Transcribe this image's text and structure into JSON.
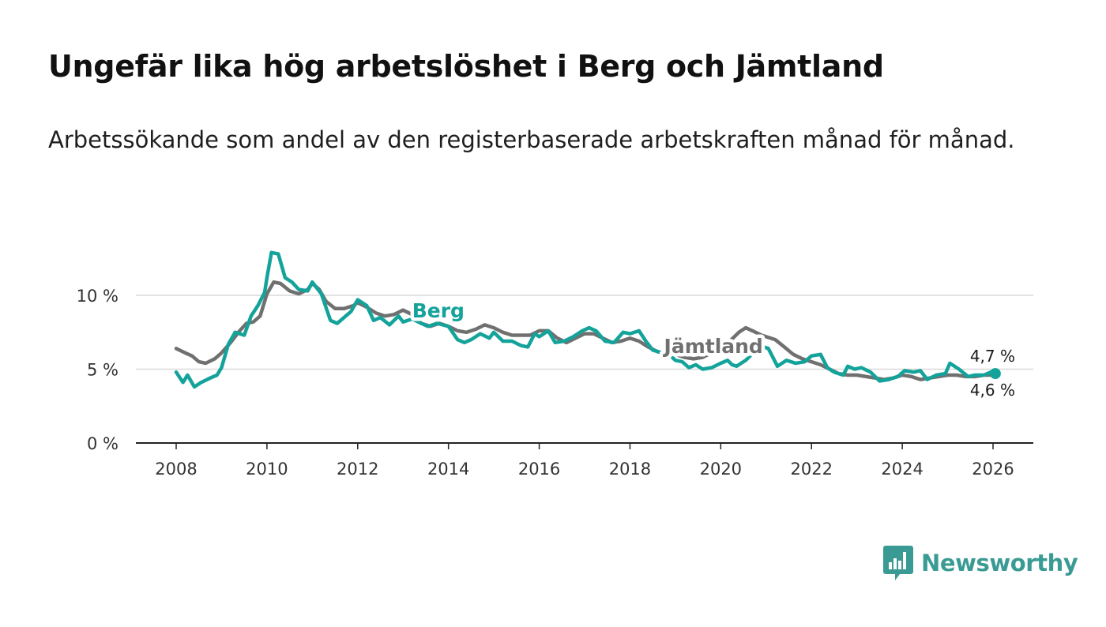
{
  "title": "Ungefär lika hög arbetslöshet i Berg och Jämtland",
  "subtitle": "Arbetssökande som andel av den registerbaserade arbetskraften månad för månad.",
  "brand": {
    "name": "Newsworthy",
    "color": "#3a9b94",
    "icon": "bar-chart-speech-bubble-icon"
  },
  "colors": {
    "berg": "#14a39a",
    "jamtland": "#707070",
    "grid": "#d9d9d9",
    "axis": "#222222"
  },
  "chart_data": {
    "type": "line",
    "title": "Ungefär lika hög arbetslöshet i Berg och Jämtland",
    "xlabel": "",
    "ylabel": "",
    "xlim": [
      2007.6,
      2026.9
    ],
    "ylim": [
      0,
      12.5
    ],
    "x_ticks": [
      2008,
      2010,
      2012,
      2014,
      2016,
      2018,
      2020,
      2022,
      2024,
      2026
    ],
    "x_tick_labels": [
      "2008",
      "2010",
      "2012",
      "2014",
      "2016",
      "2018",
      "2020",
      "2022",
      "2024",
      "2026"
    ],
    "y_ticks": [
      0,
      5,
      10
    ],
    "y_tick_labels": [
      "0 %",
      "5 %",
      "10 %"
    ],
    "grid": true,
    "series": [
      {
        "name": "Jämtland",
        "label": "Jämtland",
        "end_label": "4,6 %",
        "points": [
          [
            2008.0,
            6.4
          ],
          [
            2008.2,
            6.1
          ],
          [
            2008.35,
            5.9
          ],
          [
            2008.5,
            5.5
          ],
          [
            2008.65,
            5.4
          ],
          [
            2008.85,
            5.7
          ],
          [
            2009.0,
            6.1
          ],
          [
            2009.2,
            6.8
          ],
          [
            2009.4,
            7.6
          ],
          [
            2009.55,
            8.1
          ],
          [
            2009.7,
            8.2
          ],
          [
            2009.85,
            8.6
          ],
          [
            2010.0,
            10.1
          ],
          [
            2010.15,
            10.9
          ],
          [
            2010.3,
            10.8
          ],
          [
            2010.5,
            10.3
          ],
          [
            2010.7,
            10.1
          ],
          [
            2010.9,
            10.4
          ],
          [
            2011.0,
            10.8
          ],
          [
            2011.15,
            10.4
          ],
          [
            2011.3,
            9.6
          ],
          [
            2011.5,
            9.1
          ],
          [
            2011.7,
            9.1
          ],
          [
            2011.9,
            9.3
          ],
          [
            2012.0,
            9.5
          ],
          [
            2012.2,
            9.2
          ],
          [
            2012.4,
            8.8
          ],
          [
            2012.6,
            8.6
          ],
          [
            2012.8,
            8.7
          ],
          [
            2013.0,
            9.0
          ],
          [
            2013.2,
            8.7
          ],
          [
            2013.4,
            8.1
          ],
          [
            2013.6,
            7.9
          ],
          [
            2013.8,
            8.1
          ],
          [
            2014.0,
            7.9
          ],
          [
            2014.2,
            7.6
          ],
          [
            2014.4,
            7.5
          ],
          [
            2014.6,
            7.7
          ],
          [
            2014.8,
            8.0
          ],
          [
            2015.0,
            7.8
          ],
          [
            2015.2,
            7.5
          ],
          [
            2015.4,
            7.3
          ],
          [
            2015.6,
            7.3
          ],
          [
            2015.8,
            7.3
          ],
          [
            2016.0,
            7.6
          ],
          [
            2016.2,
            7.6
          ],
          [
            2016.4,
            7.1
          ],
          [
            2016.6,
            6.8
          ],
          [
            2016.8,
            7.1
          ],
          [
            2017.0,
            7.4
          ],
          [
            2017.2,
            7.4
          ],
          [
            2017.4,
            7.1
          ],
          [
            2017.6,
            6.8
          ],
          [
            2017.8,
            6.9
          ],
          [
            2018.0,
            7.1
          ],
          [
            2018.2,
            6.9
          ],
          [
            2018.4,
            6.5
          ],
          [
            2018.6,
            6.2
          ],
          [
            2018.8,
            6.0
          ],
          [
            2019.0,
            6.0
          ],
          [
            2019.2,
            5.8
          ],
          [
            2019.4,
            5.7
          ],
          [
            2019.6,
            5.8
          ],
          [
            2019.8,
            6.1
          ],
          [
            2020.0,
            6.3
          ],
          [
            2020.2,
            6.9
          ],
          [
            2020.4,
            7.5
          ],
          [
            2020.55,
            7.8
          ],
          [
            2020.7,
            7.6
          ],
          [
            2020.9,
            7.3
          ],
          [
            2021.0,
            7.2
          ],
          [
            2021.2,
            7.0
          ],
          [
            2021.4,
            6.5
          ],
          [
            2021.6,
            6.0
          ],
          [
            2021.8,
            5.7
          ],
          [
            2022.0,
            5.5
          ],
          [
            2022.2,
            5.3
          ],
          [
            2022.4,
            5.0
          ],
          [
            2022.6,
            4.7
          ],
          [
            2022.8,
            4.6
          ],
          [
            2023.0,
            4.6
          ],
          [
            2023.2,
            4.5
          ],
          [
            2023.4,
            4.4
          ],
          [
            2023.6,
            4.3
          ],
          [
            2023.8,
            4.4
          ],
          [
            2024.0,
            4.6
          ],
          [
            2024.2,
            4.5
          ],
          [
            2024.4,
            4.3
          ],
          [
            2024.6,
            4.4
          ],
          [
            2024.8,
            4.5
          ],
          [
            2025.0,
            4.6
          ],
          [
            2025.2,
            4.6
          ],
          [
            2025.4,
            4.5
          ],
          [
            2025.6,
            4.5
          ],
          [
            2025.8,
            4.6
          ],
          [
            2026.0,
            4.6
          ]
        ]
      },
      {
        "name": "Berg",
        "label": "Berg",
        "end_label": "4,7 %",
        "points": [
          [
            2008.0,
            4.8
          ],
          [
            2008.15,
            4.1
          ],
          [
            2008.25,
            4.6
          ],
          [
            2008.4,
            3.8
          ],
          [
            2008.55,
            4.1
          ],
          [
            2008.75,
            4.4
          ],
          [
            2008.9,
            4.6
          ],
          [
            2009.0,
            5.1
          ],
          [
            2009.15,
            6.7
          ],
          [
            2009.3,
            7.5
          ],
          [
            2009.5,
            7.3
          ],
          [
            2009.65,
            8.6
          ],
          [
            2009.8,
            9.3
          ],
          [
            2009.95,
            10.2
          ],
          [
            2010.0,
            11.2
          ],
          [
            2010.1,
            12.9
          ],
          [
            2010.25,
            12.8
          ],
          [
            2010.4,
            11.2
          ],
          [
            2010.55,
            10.9
          ],
          [
            2010.7,
            10.4
          ],
          [
            2010.9,
            10.3
          ],
          [
            2011.0,
            10.9
          ],
          [
            2011.2,
            10.1
          ],
          [
            2011.4,
            8.3
          ],
          [
            2011.55,
            8.1
          ],
          [
            2011.7,
            8.5
          ],
          [
            2011.85,
            8.9
          ],
          [
            2012.0,
            9.7
          ],
          [
            2012.2,
            9.3
          ],
          [
            2012.35,
            8.3
          ],
          [
            2012.5,
            8.5
          ],
          [
            2012.7,
            8.0
          ],
          [
            2012.9,
            8.6
          ],
          [
            2013.0,
            8.2
          ],
          [
            2013.2,
            8.4
          ],
          [
            2013.4,
            8.1
          ],
          [
            2013.55,
            7.9
          ],
          [
            2013.75,
            8.1
          ],
          [
            2014.0,
            7.9
          ],
          [
            2014.2,
            7.0
          ],
          [
            2014.35,
            6.8
          ],
          [
            2014.5,
            7.0
          ],
          [
            2014.7,
            7.4
          ],
          [
            2014.9,
            7.1
          ],
          [
            2015.0,
            7.5
          ],
          [
            2015.2,
            6.9
          ],
          [
            2015.4,
            6.9
          ],
          [
            2015.6,
            6.6
          ],
          [
            2015.75,
            6.5
          ],
          [
            2015.9,
            7.4
          ],
          [
            2016.0,
            7.2
          ],
          [
            2016.2,
            7.6
          ],
          [
            2016.35,
            6.8
          ],
          [
            2016.55,
            6.9
          ],
          [
            2016.75,
            7.2
          ],
          [
            2016.95,
            7.6
          ],
          [
            2017.1,
            7.8
          ],
          [
            2017.25,
            7.6
          ],
          [
            2017.45,
            6.9
          ],
          [
            2017.65,
            6.8
          ],
          [
            2017.85,
            7.5
          ],
          [
            2018.0,
            7.4
          ],
          [
            2018.2,
            7.6
          ],
          [
            2018.35,
            6.9
          ],
          [
            2018.5,
            6.3
          ],
          [
            2018.7,
            6.1
          ],
          [
            2018.9,
            5.9
          ],
          [
            2019.0,
            5.6
          ],
          [
            2019.15,
            5.5
          ],
          [
            2019.3,
            5.1
          ],
          [
            2019.45,
            5.3
          ],
          [
            2019.6,
            5.0
          ],
          [
            2019.8,
            5.1
          ],
          [
            2020.0,
            5.4
          ],
          [
            2020.15,
            5.6
          ],
          [
            2020.25,
            5.3
          ],
          [
            2020.35,
            5.2
          ],
          [
            2020.55,
            5.6
          ],
          [
            2020.75,
            6.2
          ],
          [
            2020.95,
            6.5
          ],
          [
            2021.05,
            6.4
          ],
          [
            2021.25,
            5.2
          ],
          [
            2021.45,
            5.6
          ],
          [
            2021.65,
            5.4
          ],
          [
            2021.85,
            5.5
          ],
          [
            2022.0,
            5.9
          ],
          [
            2022.2,
            6.0
          ],
          [
            2022.35,
            5.1
          ],
          [
            2022.5,
            4.8
          ],
          [
            2022.7,
            4.6
          ],
          [
            2022.8,
            5.2
          ],
          [
            2022.95,
            5.0
          ],
          [
            2023.1,
            5.1
          ],
          [
            2023.3,
            4.8
          ],
          [
            2023.5,
            4.2
          ],
          [
            2023.7,
            4.3
          ],
          [
            2023.9,
            4.5
          ],
          [
            2024.05,
            4.9
          ],
          [
            2024.25,
            4.8
          ],
          [
            2024.4,
            4.9
          ],
          [
            2024.55,
            4.3
          ],
          [
            2024.75,
            4.6
          ],
          [
            2024.95,
            4.7
          ],
          [
            2025.05,
            5.4
          ],
          [
            2025.25,
            5.0
          ],
          [
            2025.45,
            4.5
          ],
          [
            2025.6,
            4.6
          ],
          [
            2025.8,
            4.6
          ],
          [
            2025.95,
            4.8
          ],
          [
            2026.05,
            4.7
          ]
        ]
      }
    ]
  }
}
